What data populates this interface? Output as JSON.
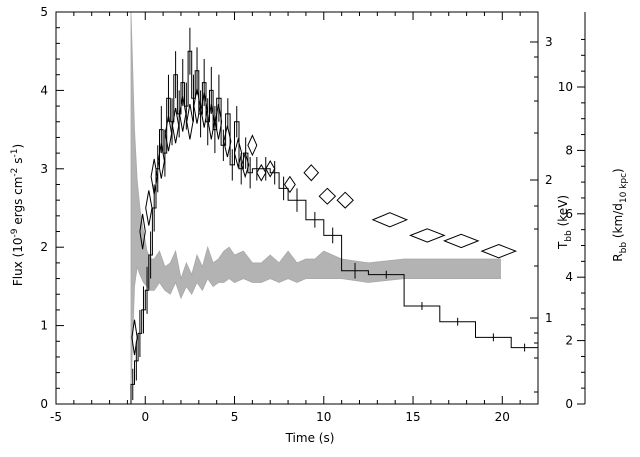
{
  "chart_data": {
    "type": "line",
    "title": "",
    "xlabel": "Time (s)",
    "ylabel_left": [
      "Flux (10",
      "-9",
      " ergs cm",
      "-2",
      " s",
      "-1",
      ")"
    ],
    "ylabel_right_inner": [
      "T",
      "bb",
      " (keV)"
    ],
    "ylabel_right_outer": [
      "R",
      "bb",
      " (km/d",
      "10 kpc",
      ")"
    ],
    "xlim": [
      -5,
      22
    ],
    "ylim_flux": [
      0,
      5
    ],
    "x_ticks": [
      "-5",
      "0",
      "5",
      "10",
      "15",
      "20"
    ],
    "flux_ticks": [
      "0",
      "1",
      "2",
      "3",
      "4",
      "5"
    ],
    "kT_ticks": [
      "1",
      "2",
      "3"
    ],
    "R_ticks": [
      "0",
      "2",
      "4",
      "6",
      "8",
      "10"
    ],
    "series": [
      {
        "kind": "flux_histogram",
        "x": [
          -0.8,
          -0.6,
          -0.4,
          -0.2,
          0.0,
          0.2,
          0.4,
          0.6,
          0.8,
          1.0,
          1.2,
          1.4,
          1.6,
          1.8,
          2.0,
          2.2,
          2.4,
          2.6,
          2.8,
          3.0,
          3.2,
          3.4,
          3.6,
          3.8,
          4.0,
          4.25,
          4.5,
          4.75,
          5.0,
          5.25,
          5.5,
          5.75,
          6.0,
          6.5,
          7.0,
          7.5,
          8.0,
          9.0,
          10.0,
          11.0,
          12.5,
          14.5,
          16.5,
          18.5,
          20.5,
          22.0
        ],
        "y": [
          0.25,
          0.55,
          0.9,
          1.2,
          1.45,
          1.9,
          2.5,
          3.0,
          3.5,
          3.2,
          3.9,
          3.6,
          4.2,
          3.7,
          4.1,
          3.8,
          4.5,
          3.9,
          4.25,
          3.7,
          4.1,
          3.6,
          4.0,
          3.5,
          3.9,
          3.3,
          3.7,
          3.05,
          3.6,
          3.0,
          3.2,
          2.95,
          3.0,
          3.0,
          2.95,
          2.75,
          2.6,
          2.35,
          2.15,
          1.7,
          1.65,
          1.25,
          1.05,
          0.85,
          0.72
        ],
        "err": [
          0.2,
          0.25,
          0.3,
          0.3,
          0.3,
          0.3,
          0.3,
          0.3,
          0.3,
          0.3,
          0.3,
          0.3,
          0.3,
          0.3,
          0.3,
          0.3,
          0.3,
          0.3,
          0.3,
          0.3,
          0.3,
          0.3,
          0.3,
          0.3,
          0.3,
          0.2,
          0.2,
          0.2,
          0.2,
          0.2,
          0.2,
          0.2,
          0.15,
          0.15,
          0.15,
          0.15,
          0.15,
          0.1,
          0.1,
          0.1,
          0.05,
          0.05,
          0.05,
          0.05,
          0.05
        ]
      },
      {
        "kind": "temperature_diamonds",
        "points": [
          {
            "x": -0.6,
            "y": 0.85,
            "w": 0.3,
            "h": 0.45
          },
          {
            "x": -0.15,
            "y": 2.2,
            "w": 0.3,
            "h": 0.45
          },
          {
            "x": 0.2,
            "y": 2.5,
            "w": 0.35,
            "h": 0.45
          },
          {
            "x": 0.5,
            "y": 2.9,
            "w": 0.35,
            "h": 0.45
          },
          {
            "x": 0.9,
            "y": 3.1,
            "w": 0.35,
            "h": 0.45
          },
          {
            "x": 1.3,
            "y": 3.45,
            "w": 0.35,
            "h": 0.45
          },
          {
            "x": 1.7,
            "y": 3.55,
            "w": 0.35,
            "h": 0.45
          },
          {
            "x": 2.1,
            "y": 3.7,
            "w": 0.35,
            "h": 0.45
          },
          {
            "x": 2.5,
            "y": 3.6,
            "w": 0.35,
            "h": 0.45
          },
          {
            "x": 2.9,
            "y": 3.8,
            "w": 0.35,
            "h": 0.45
          },
          {
            "x": 3.3,
            "y": 3.75,
            "w": 0.35,
            "h": 0.45
          },
          {
            "x": 3.7,
            "y": 3.6,
            "w": 0.35,
            "h": 0.45
          },
          {
            "x": 4.1,
            "y": 3.6,
            "w": 0.35,
            "h": 0.45
          },
          {
            "x": 4.6,
            "y": 3.35,
            "w": 0.4,
            "h": 0.4
          },
          {
            "x": 5.2,
            "y": 3.2,
            "w": 0.4,
            "h": 0.35
          },
          {
            "x": 5.6,
            "y": 3.05,
            "w": 0.4,
            "h": 0.3
          },
          {
            "x": 6.0,
            "y": 3.3,
            "w": 0.5,
            "h": 0.25
          },
          {
            "x": 6.5,
            "y": 2.95,
            "w": 0.5,
            "h": 0.2
          },
          {
            "x": 7.0,
            "y": 3.0,
            "w": 0.5,
            "h": 0.2
          },
          {
            "x": 8.1,
            "y": 2.8,
            "w": 0.6,
            "h": 0.2
          },
          {
            "x": 9.3,
            "y": 2.95,
            "w": 0.8,
            "h": 0.2
          },
          {
            "x": 10.2,
            "y": 2.65,
            "w": 0.9,
            "h": 0.2
          },
          {
            "x": 11.2,
            "y": 2.6,
            "w": 0.9,
            "h": 0.2
          },
          {
            "x": 13.7,
            "y": 2.35,
            "w": 1.9,
            "h": 0.18
          },
          {
            "x": 15.8,
            "y": 2.15,
            "w": 1.9,
            "h": 0.17
          },
          {
            "x": 17.7,
            "y": 2.08,
            "w": 1.9,
            "h": 0.17
          },
          {
            "x": 19.8,
            "y": 1.95,
            "w": 1.9,
            "h": 0.17
          }
        ]
      },
      {
        "kind": "radius_band",
        "x": [
          -0.8,
          -0.6,
          -0.45,
          -0.3,
          -0.1,
          0.1,
          0.3,
          0.5,
          0.8,
          1.1,
          1.4,
          1.7,
          2.0,
          2.3,
          2.6,
          2.9,
          3.2,
          3.5,
          3.8,
          4.1,
          4.4,
          4.7,
          5.0,
          5.5,
          6.0,
          6.5,
          7.0,
          7.5,
          8.0,
          8.5,
          9.0,
          9.5,
          10.0,
          11.0,
          12.5,
          14.5,
          16.5,
          18.5,
          19.9
        ],
        "hi": [
          5.0,
          3.5,
          2.85,
          2.5,
          2.2,
          1.95,
          1.85,
          1.85,
          1.95,
          1.75,
          1.8,
          1.95,
          1.6,
          1.8,
          1.65,
          1.9,
          1.75,
          2.0,
          1.8,
          1.85,
          1.95,
          2.0,
          1.9,
          1.95,
          1.8,
          1.8,
          1.9,
          1.8,
          1.95,
          1.8,
          1.85,
          1.85,
          1.95,
          1.85,
          1.8,
          1.85,
          1.85,
          1.85,
          1.85
        ],
        "lo": [
          0.2,
          1.5,
          1.75,
          1.65,
          1.55,
          1.5,
          1.45,
          1.45,
          1.55,
          1.45,
          1.4,
          1.55,
          1.35,
          1.5,
          1.4,
          1.55,
          1.45,
          1.6,
          1.5,
          1.55,
          1.55,
          1.6,
          1.55,
          1.6,
          1.55,
          1.55,
          1.6,
          1.55,
          1.6,
          1.55,
          1.6,
          1.6,
          1.6,
          1.6,
          1.55,
          1.6,
          1.6,
          1.6,
          1.6
        ]
      }
    ]
  }
}
